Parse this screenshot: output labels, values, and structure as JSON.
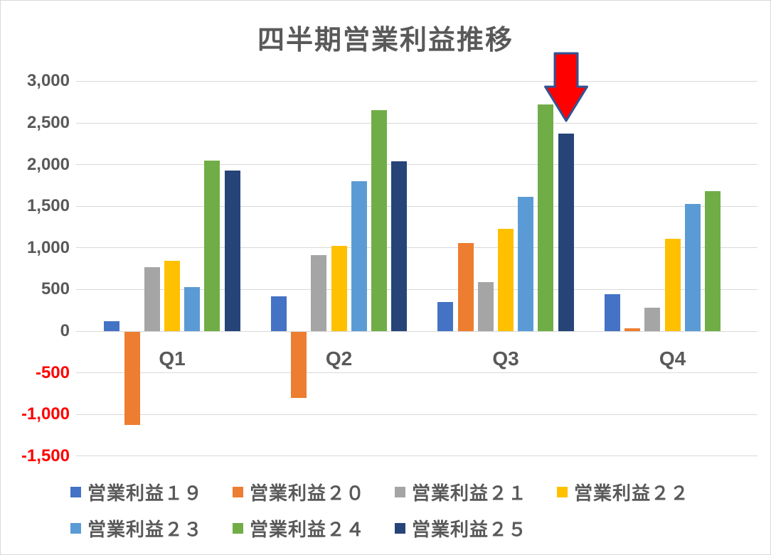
{
  "chart_data": {
    "type": "bar",
    "title": "四半期営業利益推移",
    "categories": [
      "Q1",
      "Q2",
      "Q3",
      "Q4"
    ],
    "series": [
      {
        "name": "営業利益１９",
        "color": "#4472C4",
        "values": [
          120,
          420,
          350,
          440
        ]
      },
      {
        "name": "営業利益２０",
        "color": "#ED7D31",
        "values": [
          -1120,
          -795,
          1060,
          35
        ]
      },
      {
        "name": "営業利益２１",
        "color": "#A5A5A5",
        "values": [
          770,
          910,
          590,
          280
        ]
      },
      {
        "name": "営業利益２２",
        "color": "#FFC000",
        "values": [
          845,
          1025,
          1230,
          1105
        ]
      },
      {
        "name": "営業利益２３",
        "color": "#5B9BD5",
        "values": [
          525,
          1800,
          1615,
          1530
        ]
      },
      {
        "name": "営業利益２４",
        "color": "#70AD47",
        "values": [
          2050,
          2650,
          2725,
          1680
        ]
      },
      {
        "name": "営業利益２５",
        "color": "#264478",
        "values": [
          1925,
          2040,
          2370,
          null
        ]
      }
    ],
    "ylim": [
      -1500,
      3000
    ],
    "ytick_interval": 500,
    "yticks": [
      {
        "value": 3000,
        "label": "3,000"
      },
      {
        "value": 2500,
        "label": "2,500"
      },
      {
        "value": 2000,
        "label": "2,000"
      },
      {
        "value": 1500,
        "label": "1,500"
      },
      {
        "value": 1000,
        "label": "1,000"
      },
      {
        "value": 500,
        "label": "500"
      },
      {
        "value": 0,
        "label": "0"
      },
      {
        "value": -500,
        "label": "-500"
      },
      {
        "value": -1000,
        "label": "-1,000"
      },
      {
        "value": -1500,
        "label": "-1,500"
      }
    ],
    "grid": true,
    "legend_position": "bottom",
    "legend_rows": [
      [
        0,
        1,
        2,
        3
      ],
      [
        4,
        5,
        6
      ]
    ],
    "annotation": {
      "shape": "down-arrow",
      "fill": "#FF0000",
      "stroke": "#2F5496",
      "points_at": {
        "series": "営業利益２５",
        "category": "Q3"
      }
    }
  },
  "colors": {
    "text": "#595959",
    "negative_tick": "#FF0000",
    "gridline": "#D9D9D9",
    "chart_border": "#D9D9D9",
    "background": "#FFFFFF"
  }
}
